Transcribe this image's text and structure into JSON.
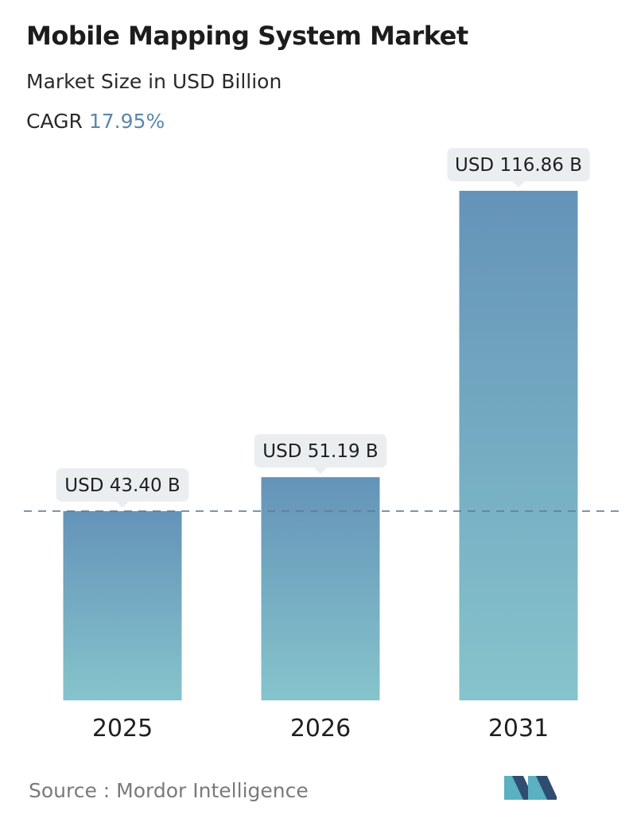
{
  "header": {
    "title": "Mobile Mapping System Market",
    "subtitle": "Market Size in USD Billion",
    "cagr_label": "CAGR",
    "cagr_value": "17.95%"
  },
  "chart_data": {
    "type": "bar",
    "title": "Mobile Mapping System Market",
    "subtitle": "Market Size in USD Billion",
    "categories": [
      "2025",
      "2026",
      "2031"
    ],
    "values": [
      43.4,
      51.19,
      116.86
    ],
    "value_labels": [
      "USD 43.40 B",
      "USD 51.19 B",
      "USD 116.86 B"
    ],
    "xlabel": "",
    "ylabel": "",
    "ylim": [
      0,
      116.86
    ],
    "grid": false,
    "reference_line": {
      "value": 43.4,
      "style": "dashed"
    },
    "colors": {
      "bar_top": "#6493b8",
      "bar_bottom": "#86c4cc",
      "label_bg": "#eaeef1",
      "reference_line": "#5c7f96"
    }
  },
  "footer": {
    "source": "Source :  Mordor Intelligence",
    "logo_icon": "mordor-intelligence-logo-icon",
    "logo_colors": [
      "#2f4d70",
      "#5ab1bf"
    ]
  }
}
